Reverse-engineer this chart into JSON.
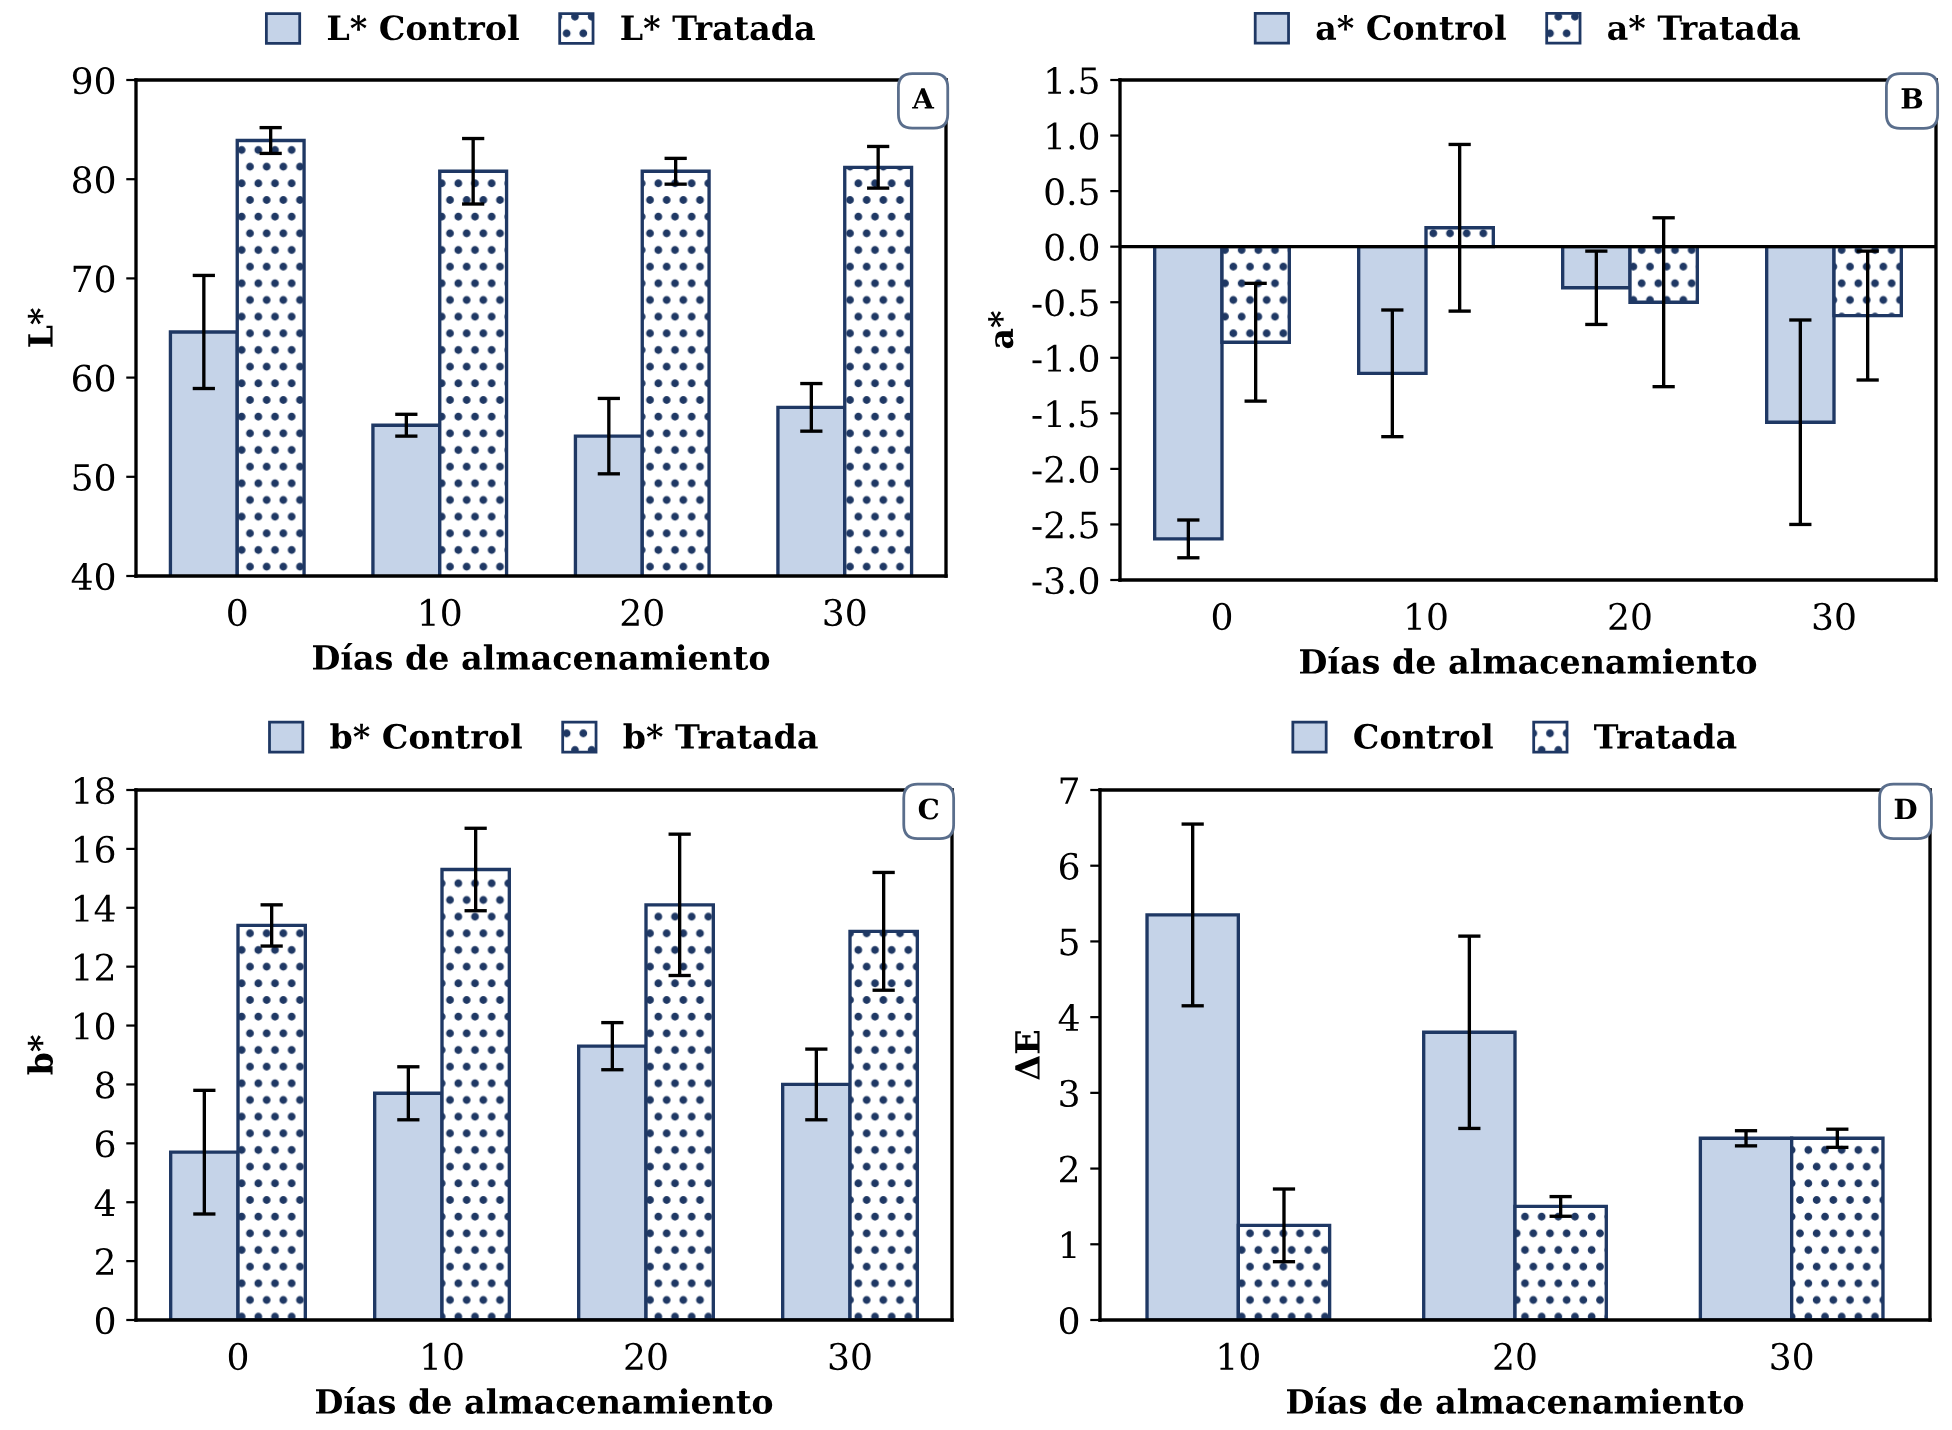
{
  "chart_data": [
    {
      "type": "bar",
      "categories": [
        "0",
        "10",
        "20",
        "30"
      ],
      "xlabel": "Días de almacenamiento",
      "ylabel": "L*",
      "ylim": [
        40,
        90
      ],
      "yticks": [
        40,
        50,
        60,
        70,
        80,
        90
      ],
      "grid": false,
      "legend": "top",
      "annotations": [
        "A"
      ],
      "series": [
        {
          "name": "L* Control",
          "color": "#c5d3e8",
          "values": [
            64.6,
            55.2,
            54.1,
            57.0
          ],
          "errors": [
            5.7,
            1.1,
            3.8,
            2.4
          ]
        },
        {
          "name": "L* Tratada",
          "color": "#1f3864",
          "values": [
            83.9,
            80.8,
            80.8,
            81.2
          ],
          "errors": [
            1.3,
            3.3,
            1.3,
            2.1
          ]
        }
      ]
    },
    {
      "type": "bar",
      "categories": [
        "0",
        "10",
        "20",
        "30"
      ],
      "xlabel": "Días de almacenamiento",
      "ylabel": "a*",
      "ylim": [
        -3.0,
        1.5
      ],
      "yticks": [
        {
          "value": -3.0,
          "label": "-3.0"
        },
        {
          "value": -2.5,
          "label": "-2.5"
        },
        {
          "value": -2.0,
          "label": "-2.0"
        },
        {
          "value": -1.5,
          "label": "-1.5"
        },
        {
          "value": -1.0,
          "label": "-1.0"
        },
        {
          "value": -0.5,
          "label": "-0.5"
        },
        {
          "value": 0.0,
          "label": "0.0"
        },
        {
          "value": 0.5,
          "label": "0.5"
        },
        {
          "value": 1.0,
          "label": "1.0"
        },
        {
          "value": 1.5,
          "label": "1.5"
        }
      ],
      "grid": false,
      "legend": "top",
      "annotations": [
        "B"
      ],
      "ref_lines": [
        {
          "axis": "y",
          "value": 0,
          "color": "#000000"
        }
      ],
      "series": [
        {
          "name": "a* Control",
          "color": "#c5d3e8",
          "values": [
            -2.63,
            -1.14,
            -0.37,
            -1.58
          ],
          "errors": [
            0.17,
            0.57,
            0.33,
            0.92
          ]
        },
        {
          "name": "a* Tratada",
          "color": "#1f3864",
          "values": [
            -0.86,
            0.17,
            -0.5,
            -0.62
          ],
          "errors": [
            0.53,
            0.75,
            0.76,
            0.58
          ]
        }
      ]
    },
    {
      "type": "bar",
      "categories": [
        "0",
        "10",
        "20",
        "30"
      ],
      "xlabel": "Días de almacenamiento",
      "ylabel": "b*",
      "ylim": [
        0,
        18
      ],
      "yticks": [
        0,
        2,
        4,
        6,
        8,
        10,
        12,
        14,
        16,
        18
      ],
      "grid": false,
      "legend": "top",
      "annotations": [
        "C"
      ],
      "series": [
        {
          "name": "b* Control",
          "color": "#c5d3e8",
          "values": [
            5.7,
            7.7,
            9.3,
            8.0
          ],
          "errors": [
            2.1,
            0.9,
            0.8,
            1.2
          ]
        },
        {
          "name": "b* Tratada",
          "color": "#1f3864",
          "values": [
            13.4,
            15.3,
            14.1,
            13.2
          ],
          "errors": [
            0.7,
            1.4,
            2.4,
            2.0
          ]
        }
      ]
    },
    {
      "type": "bar",
      "categories": [
        "10",
        "20",
        "30"
      ],
      "xlabel": "Días de almacenamiento",
      "ylabel": "ΔE",
      "ylim": [
        0,
        7
      ],
      "yticks": [
        0,
        1,
        2,
        3,
        4,
        5,
        6,
        7
      ],
      "grid": false,
      "legend": "top",
      "annotations": [
        "D"
      ],
      "series": [
        {
          "name": "Control",
          "color": "#c5d3e8",
          "values": [
            5.35,
            3.8,
            2.4
          ],
          "errors": [
            1.2,
            1.27,
            0.1
          ]
        },
        {
          "name": "Tratada",
          "color": "#1f3864",
          "values": [
            1.25,
            1.5,
            2.4
          ],
          "errors": [
            0.48,
            0.13,
            0.12
          ]
        }
      ]
    }
  ]
}
